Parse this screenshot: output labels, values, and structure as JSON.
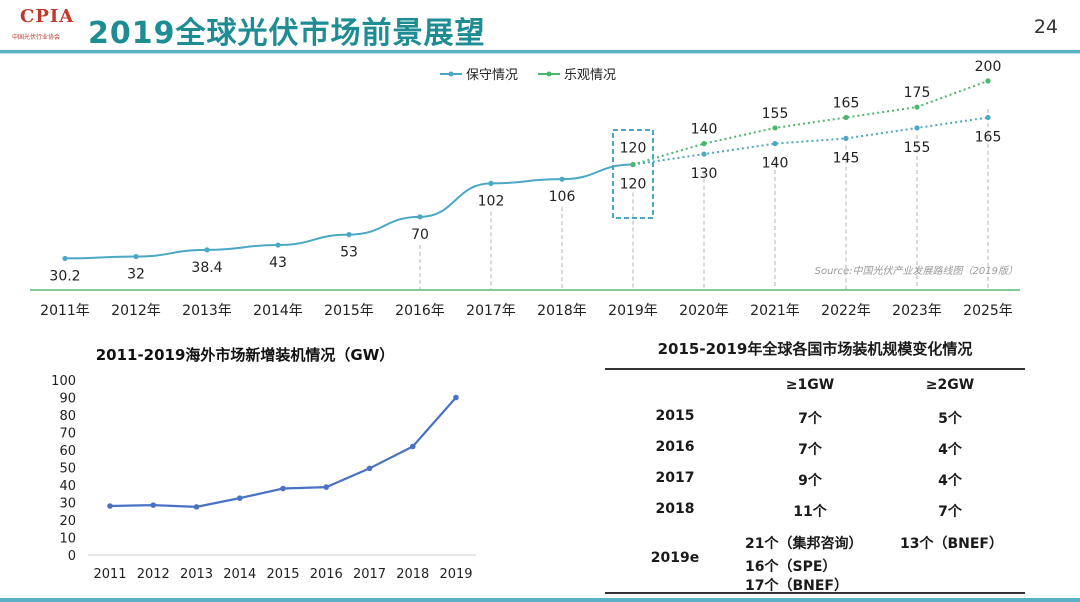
{
  "header": {
    "logo": "CPIA",
    "logo_sub": "中国光伏行业协会",
    "title": "2019全球光伏市场前景展望",
    "page_number": "24"
  },
  "colors": {
    "accent": "#1e8c93",
    "conservative": "#4aa8c4",
    "optimistic": "#49b86a",
    "overseas_line": "#4a72c4"
  },
  "chart_data": [
    {
      "type": "line",
      "title": "",
      "categories": [
        "2011年",
        "2012年",
        "2013年",
        "2014年",
        "2015年",
        "2016年",
        "2017年",
        "2018年",
        "2019年",
        "2020年",
        "2021年",
        "2022年",
        "2023年",
        "2025年"
      ],
      "series": [
        {
          "name": "保守情况",
          "values": [
            30.2,
            32,
            38.4,
            43,
            53,
            70,
            102,
            106,
            120,
            130,
            140,
            145,
            155,
            165
          ]
        },
        {
          "name": "乐观情况",
          "values": [
            null,
            null,
            null,
            null,
            null,
            null,
            null,
            null,
            120,
            140,
            155,
            165,
            175,
            200
          ]
        }
      ],
      "legend": [
        "保守情况",
        "乐观情况"
      ],
      "legend_position": "top-center",
      "source_note": "Source:中国光伏产业发展路线图（2019版）",
      "ylim": [
        0,
        220
      ]
    },
    {
      "type": "line",
      "title": "2011-2019海外市场新增装机情况（GW）",
      "categories": [
        "2011",
        "2012",
        "2013",
        "2014",
        "2015",
        "2016",
        "2017",
        "2018",
        "2019"
      ],
      "values": [
        28,
        28.5,
        27.5,
        32.5,
        38,
        38.8,
        49.5,
        62,
        90
      ],
      "yticks": [
        "0",
        "10",
        "20",
        "30",
        "40",
        "50",
        "60",
        "70",
        "80",
        "90",
        "100"
      ],
      "ylim": [
        0,
        100
      ]
    }
  ],
  "table": {
    "title": "2015-2019年全球各国市场装机规模变化情况",
    "headers": [
      "",
      "≥1GW",
      "≥2GW"
    ],
    "rows": [
      {
        "year": "2015",
        "ge1": "7个",
        "ge2": "5个"
      },
      {
        "year": "2016",
        "ge1": "7个",
        "ge2": "4个"
      },
      {
        "year": "2017",
        "ge1": "9个",
        "ge2": "4个"
      },
      {
        "year": "2018",
        "ge1": "11个",
        "ge2": "7个"
      }
    ],
    "last_row": {
      "year": "2019e",
      "ge1_lines": [
        "21个（集邦咨询）",
        "16个（SPE）",
        "17个（BNEF）"
      ],
      "ge2": "13个（BNEF）"
    }
  }
}
